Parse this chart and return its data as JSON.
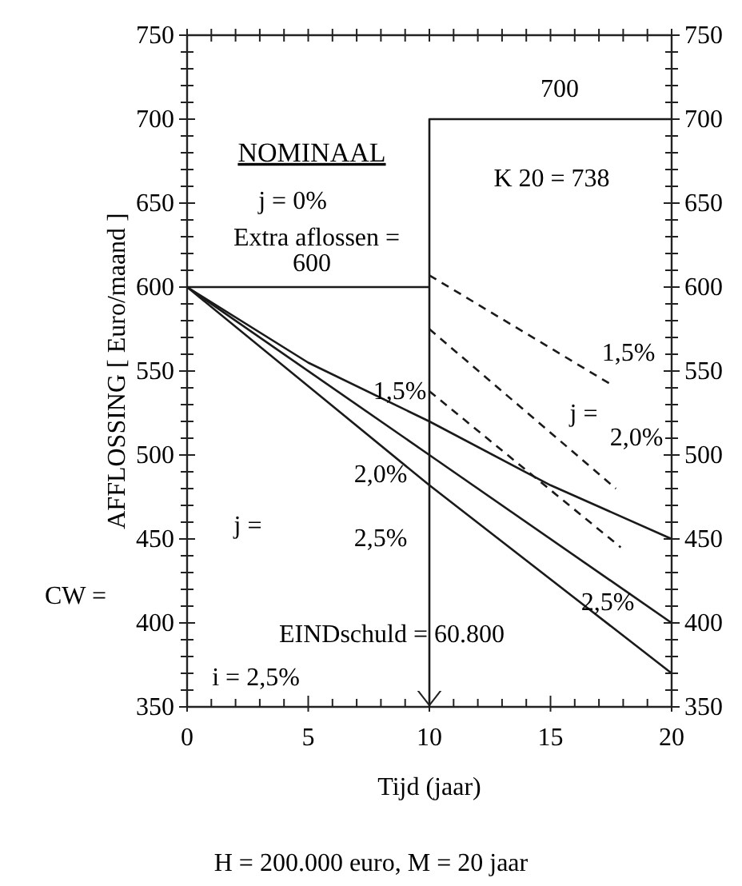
{
  "chart_data": {
    "type": "line",
    "xlabel": "Tijd  (jaar)",
    "ylabel": "AFFLOSSING [ Euro/maand ]",
    "xlim": [
      0,
      20
    ],
    "ylim": [
      350,
      750
    ],
    "y2lim": [
      350,
      750
    ],
    "xticks": [
      0,
      {
        "value": 1,
        "label": null
      },
      {
        "value": 2,
        "label": null
      },
      {
        "value": 3,
        "label": null
      },
      {
        "value": 4,
        "label": null
      },
      5,
      {
        "value": 6,
        "label": null
      },
      {
        "value": 7,
        "label": null
      },
      {
        "value": 8,
        "label": null
      },
      {
        "value": 9,
        "label": null
      },
      10,
      {
        "value": 11,
        "label": null
      },
      {
        "value": 12,
        "label": null
      },
      {
        "value": 13,
        "label": null
      },
      {
        "value": 14,
        "label": null
      },
      15,
      {
        "value": 16,
        "label": null
      },
      {
        "value": 17,
        "label": null
      },
      {
        "value": 18,
        "label": null
      },
      {
        "value": 19,
        "label": null
      },
      20
    ],
    "yticks": [
      350,
      {
        "value": 360,
        "label": null
      },
      {
        "value": 370,
        "label": null
      },
      {
        "value": 380,
        "label": null
      },
      {
        "value": 390,
        "label": null
      },
      400,
      {
        "value": 410,
        "label": null
      },
      {
        "value": 420,
        "label": null
      },
      {
        "value": 430,
        "label": null
      },
      {
        "value": 440,
        "label": null
      },
      450,
      {
        "value": 460,
        "label": null
      },
      {
        "value": 470,
        "label": null
      },
      {
        "value": 480,
        "label": null
      },
      {
        "value": 490,
        "label": null
      },
      500,
      {
        "value": 510,
        "label": null
      },
      {
        "value": 520,
        "label": null
      },
      {
        "value": 530,
        "label": null
      },
      {
        "value": 540,
        "label": null
      },
      550,
      {
        "value": 560,
        "label": null
      },
      {
        "value": 570,
        "label": null
      },
      {
        "value": 580,
        "label": null
      },
      {
        "value": 590,
        "label": null
      },
      600,
      {
        "value": 610,
        "label": null
      },
      {
        "value": 620,
        "label": null
      },
      {
        "value": 630,
        "label": null
      },
      {
        "value": 640,
        "label": null
      },
      650,
      {
        "value": 660,
        "label": null
      },
      {
        "value": 670,
        "label": null
      },
      {
        "value": 680,
        "label": null
      },
      {
        "value": 690,
        "label": null
      },
      700,
      {
        "value": 710,
        "label": null
      },
      {
        "value": 720,
        "label": null
      },
      {
        "value": 730,
        "label": null
      },
      {
        "value": 740,
        "label": null
      },
      750
    ],
    "y2ticks": [
      350,
      {
        "value": 360,
        "label": null
      },
      {
        "value": 370,
        "label": null
      },
      {
        "value": 380,
        "label": null
      },
      {
        "value": 390,
        "label": null
      },
      400,
      {
        "value": 410,
        "label": null
      },
      {
        "value": 420,
        "label": null
      },
      {
        "value": 430,
        "label": null
      },
      {
        "value": 440,
        "label": null
      },
      450,
      {
        "value": 460,
        "label": null
      },
      {
        "value": 470,
        "label": null
      },
      {
        "value": 480,
        "label": null
      },
      {
        "value": 490,
        "label": null
      },
      500,
      {
        "value": 510,
        "label": null
      },
      {
        "value": 520,
        "label": null
      },
      {
        "value": 530,
        "label": null
      },
      {
        "value": 540,
        "label": null
      },
      550,
      {
        "value": 560,
        "label": null
      },
      {
        "value": 570,
        "label": null
      },
      {
        "value": 580,
        "label": null
      },
      {
        "value": 590,
        "label": null
      },
      600,
      {
        "value": 610,
        "label": null
      },
      {
        "value": 620,
        "label": null
      },
      {
        "value": 630,
        "label": null
      },
      {
        "value": 640,
        "label": null
      },
      650,
      {
        "value": 660,
        "label": null
      },
      {
        "value": 670,
        "label": null
      },
      {
        "value": 680,
        "label": null
      },
      {
        "value": 690,
        "label": null
      },
      700,
      {
        "value": 710,
        "label": null
      },
      {
        "value": 720,
        "label": null
      },
      {
        "value": 730,
        "label": null
      },
      {
        "value": 740,
        "label": null
      },
      750
    ],
    "grid": false,
    "marker": "none",
    "series": [
      {
        "color": "#1a1a1a",
        "x": [
          0,
          5,
          10,
          15,
          20
        ],
        "values": [
          600,
          555,
          520,
          482,
          450
        ]
      },
      {
        "color": "#1a1a1a",
        "x": [
          0,
          10,
          20
        ],
        "values": [
          600,
          500,
          400
        ]
      },
      {
        "color": "#1a1a1a",
        "x": [
          0,
          10,
          20
        ],
        "values": [
          600,
          482,
          370
        ]
      },
      {
        "color": "#1a1a1a",
        "x": [
          0,
          10,
          10,
          10,
          20
        ],
        "values": [
          600,
          600,
          350,
          700,
          700
        ]
      },
      {
        "color": "#1a1a1a",
        "line_style": "dashed",
        "x": [
          10,
          17.5
        ],
        "values": [
          607,
          542
        ]
      },
      {
        "color": "#1a1a1a",
        "line_style": "dashed",
        "x": [
          10,
          17.7
        ],
        "values": [
          575,
          480
        ]
      },
      {
        "color": "#1a1a1a",
        "line_style": "dashed",
        "x": [
          10,
          17.9
        ],
        "values": [
          538,
          445
        ]
      }
    ],
    "annotations": [
      "NOMINAAL",
      "j = 0%",
      "Extra aflossen =",
      "600",
      "700",
      "K 20 = 738",
      "1,5%",
      "j =",
      "2,0%",
      "1,5%",
      "2,0%",
      "2,5%",
      "j =",
      "2,5%",
      "EINDschuld = 60.800",
      "i = 2,5%",
      "CW =",
      "H = 200.000 euro, M = 20 jaar"
    ]
  }
}
